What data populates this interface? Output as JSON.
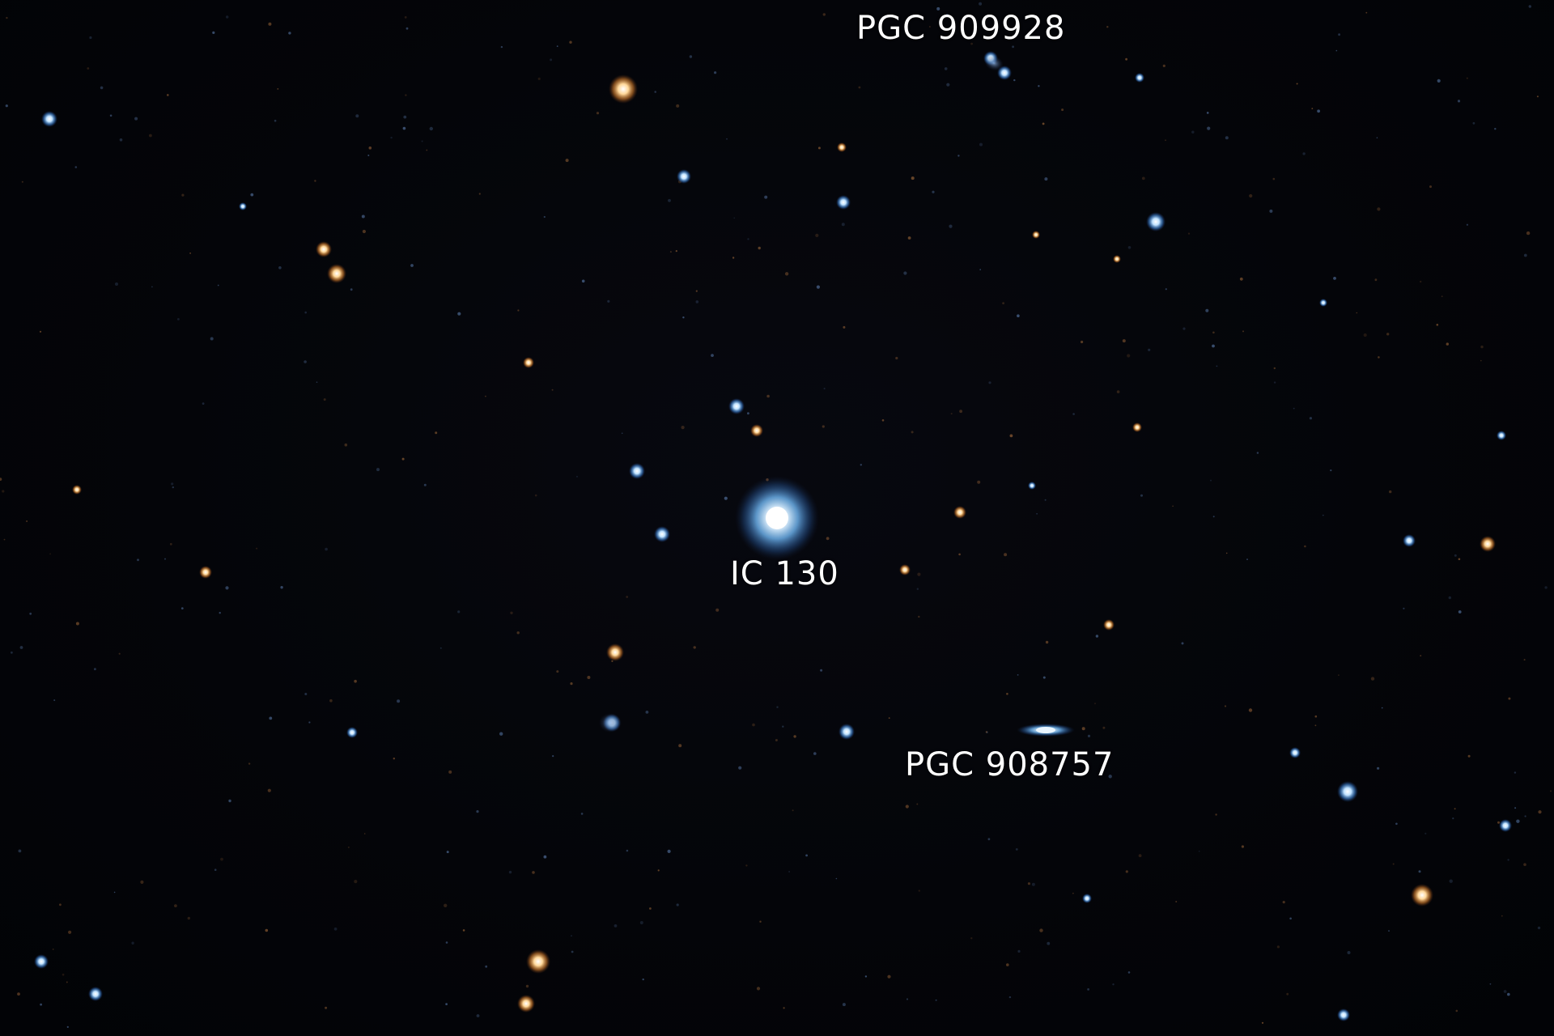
{
  "labels": {
    "pgc_909928": "PGC 909928",
    "ic_130": "IC 130",
    "pgc_908757": "PGC 908757"
  },
  "colors": {
    "sky": "#020307",
    "label": "#ffffff",
    "blue_star": "#9fd0ff",
    "orange_star": "#ffb060"
  }
}
